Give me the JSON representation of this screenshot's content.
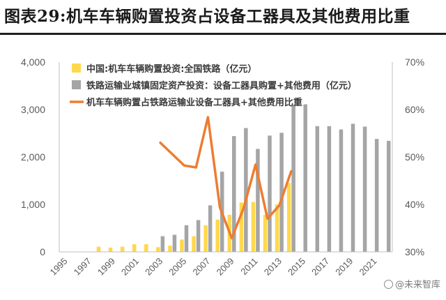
{
  "title": "图表29:机车车辆购置投资占设备工器具及其他费用比重",
  "watermark": "@未来智库",
  "chart_data": {
    "type": "bar+line",
    "title": "图表29:机车车辆购置投资占设备工器具及其他费用比重",
    "categories": [
      "1995",
      "1996",
      "1997",
      "1998",
      "1999",
      "2000",
      "2001",
      "2002",
      "2003",
      "2004",
      "2005",
      "2006",
      "2007",
      "2008",
      "2009",
      "2010",
      "2011",
      "2012",
      "2013",
      "2014",
      "2015",
      "2016",
      "2017",
      "2018",
      "2019",
      "2020",
      "2021",
      "2022"
    ],
    "x_tick_labels": [
      "1995",
      "1997",
      "1999",
      "2001",
      "2003",
      "2005",
      "2007",
      "2009",
      "2011",
      "2013",
      "2015",
      "2017",
      "2019",
      "2021"
    ],
    "y_left": {
      "min": 0,
      "max": 4000,
      "ticks": [
        0,
        1000,
        2000,
        3000,
        4000
      ],
      "tick_labels": [
        "0",
        "1,000",
        "2,000",
        "3,000",
        "4,000"
      ]
    },
    "y_right": {
      "min": 30,
      "max": 70,
      "ticks": [
        30,
        40,
        50,
        60,
        70
      ],
      "tick_labels": [
        "30%",
        "40%",
        "50%",
        "60%",
        "70%"
      ]
    },
    "series": [
      {
        "name": "中国:机车车辆购置投资:全国铁路（亿元）",
        "kind": "bar",
        "axis": "left",
        "color": "#FFD84D",
        "values": [
          null,
          null,
          null,
          110,
          90,
          110,
          160,
          160,
          100,
          130,
          260,
          330,
          560,
          680,
          780,
          1040,
          1050,
          780,
          1000,
          1450,
          null,
          null,
          null,
          null,
          null,
          null,
          null,
          null
        ]
      },
      {
        "name": "铁路运输业城镇固定资产投资：设备工器具购置+其他费用（亿元）",
        "kind": "bar",
        "axis": "left",
        "color": "#A5A5A5",
        "values": [
          null,
          null,
          null,
          null,
          null,
          null,
          null,
          null,
          330,
          360,
          560,
          670,
          980,
          1690,
          2440,
          2610,
          2170,
          2450,
          2510,
          3100,
          3110,
          2650,
          2650,
          2580,
          2700,
          2640,
          2380,
          2340
        ]
      },
      {
        "name": "机车车辆购置占铁路运输业设备工器具+其他费用比重",
        "kind": "line",
        "axis": "right",
        "color": "#ED7D31",
        "values": [
          null,
          null,
          null,
          null,
          null,
          null,
          null,
          null,
          53,
          null,
          48.2,
          47.8,
          58.4,
          39.4,
          32.9,
          39.2,
          48.4,
          37,
          39.8,
          47,
          null,
          null,
          null,
          null,
          null,
          null,
          null,
          null
        ]
      }
    ]
  }
}
